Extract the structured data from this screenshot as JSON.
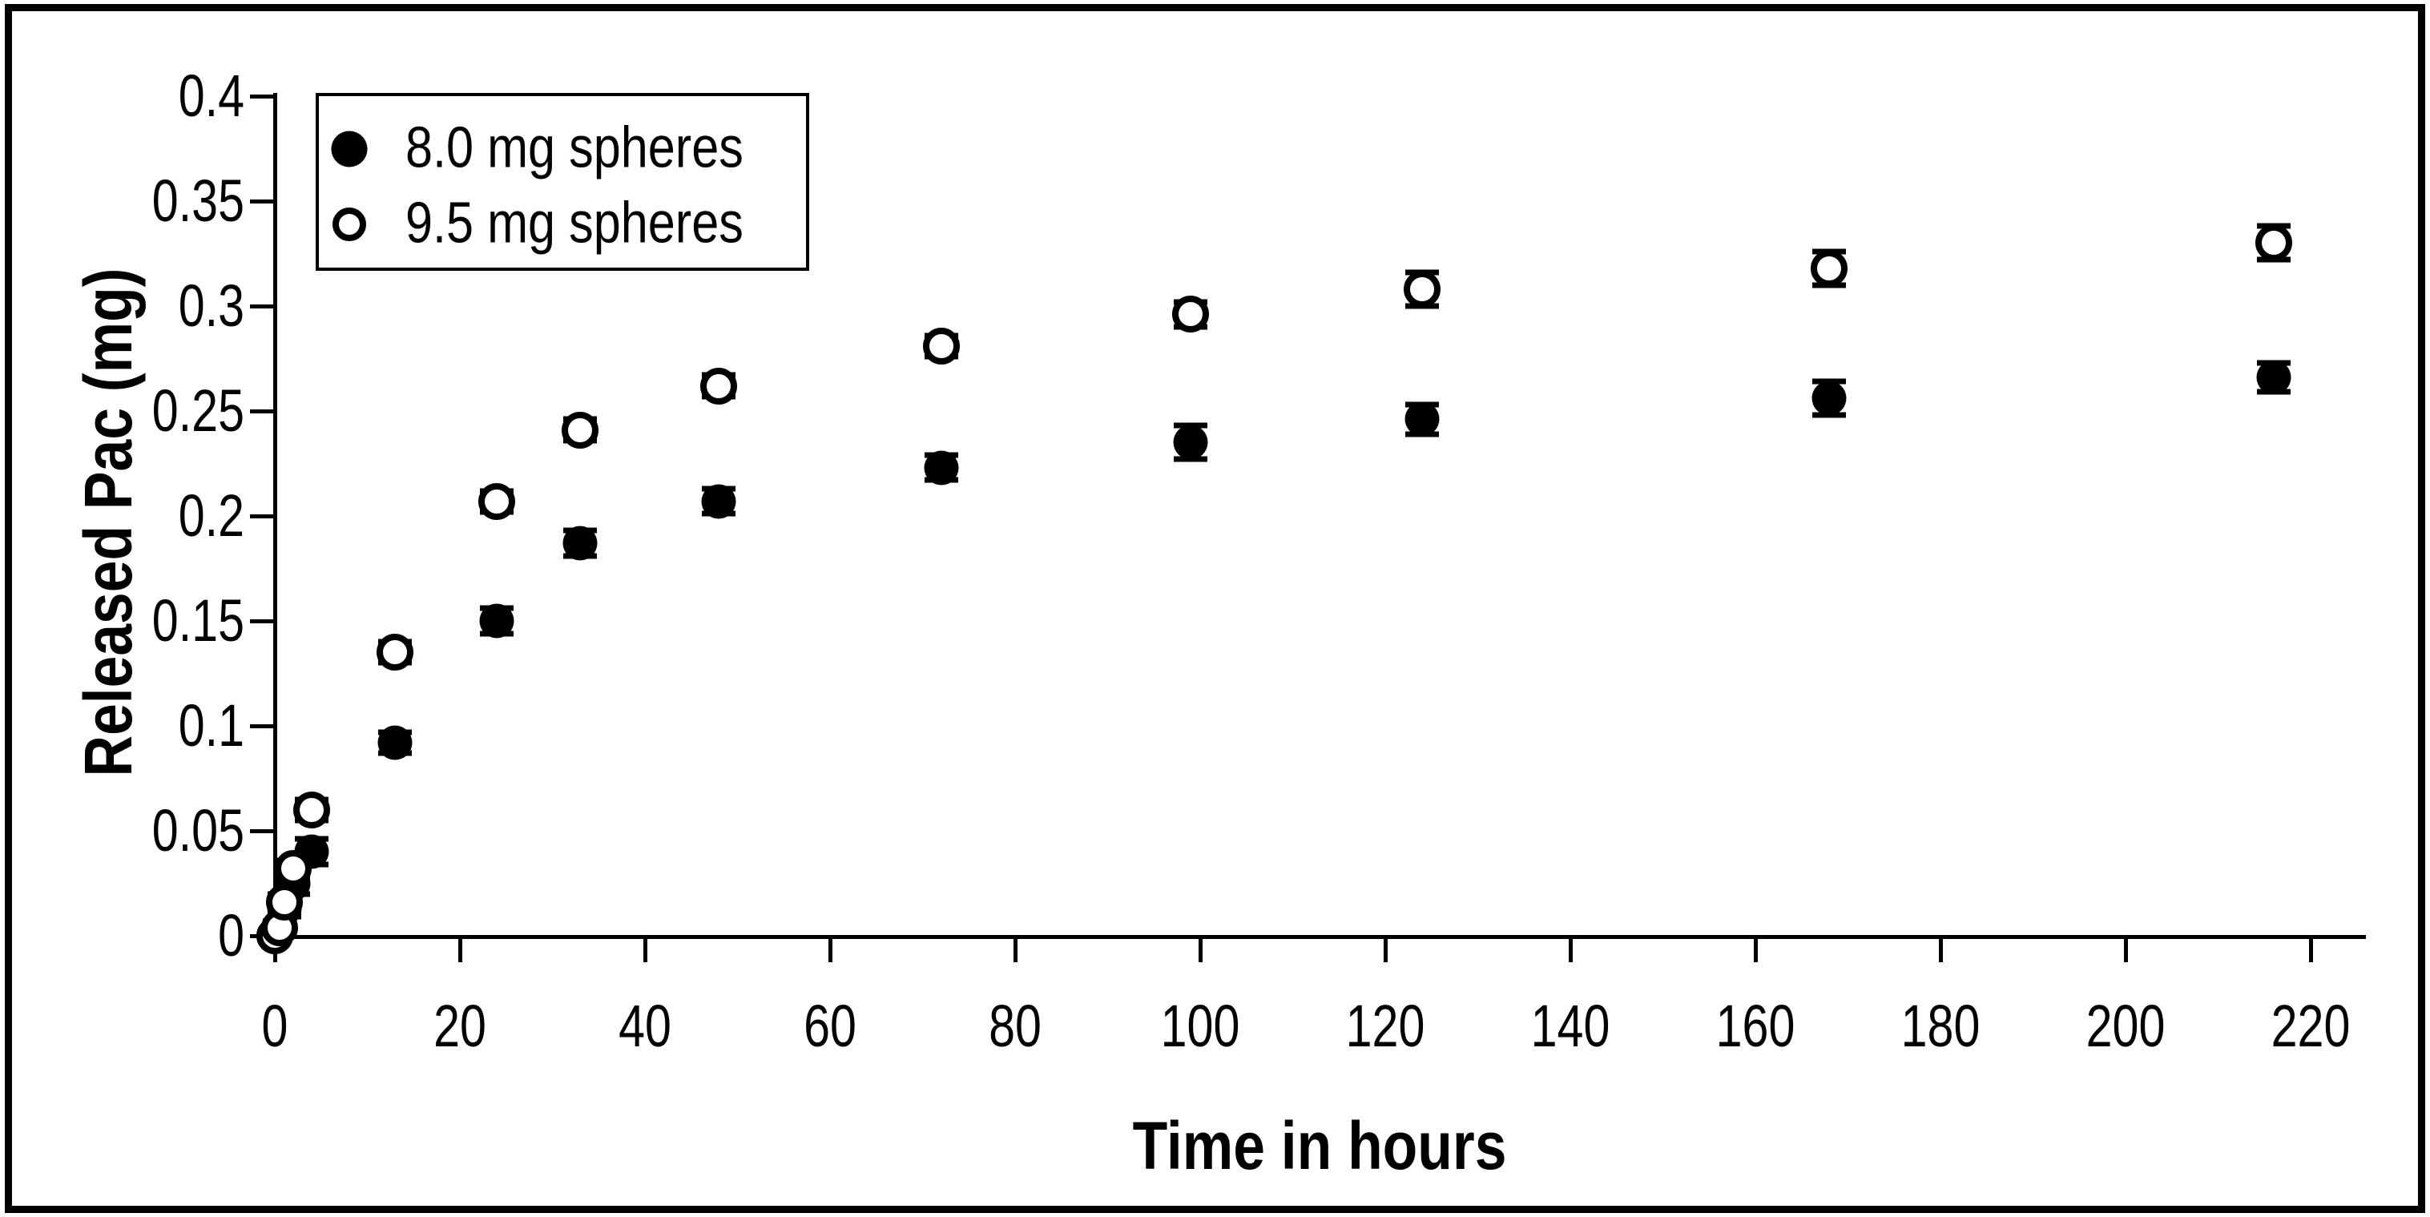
{
  "figure": {
    "background": "#ffffff",
    "ink_color": "#000000",
    "border_color": "#000000"
  },
  "chart_data": {
    "type": "scatter",
    "title": "",
    "xlabel": "Time in hours",
    "ylabel": "Released Pac (mg)",
    "xlim": [
      0,
      220
    ],
    "ylim": [
      0,
      0.4
    ],
    "grid": "off",
    "error_bars": true,
    "legend_position": "top-left-inside",
    "x_ticks": [
      0,
      20,
      40,
      60,
      80,
      100,
      120,
      140,
      160,
      180,
      200,
      220
    ],
    "y_ticks": [
      {
        "value": 0,
        "label": "0"
      },
      {
        "value": 0.05,
        "label": "0.05"
      },
      {
        "value": 0.1,
        "label": "0.1"
      },
      {
        "value": 0.15,
        "label": "0.15"
      },
      {
        "value": 0.2,
        "label": "0.2"
      },
      {
        "value": 0.25,
        "label": "0.25"
      },
      {
        "value": 0.3,
        "label": "0.3"
      },
      {
        "value": 0.35,
        "label": "0.35"
      },
      {
        "value": 0.4,
        "label": "0.4"
      }
    ],
    "series": [
      {
        "name": "8.0 mg spheres",
        "marker": "filled-circle",
        "color": "#000000",
        "points": [
          {
            "t": 0.5,
            "y": 0.003,
            "err": 0.002
          },
          {
            "t": 1,
            "y": 0.013,
            "err": 0.004
          },
          {
            "t": 2,
            "y": 0.025,
            "err": 0.005
          },
          {
            "t": 4,
            "y": 0.04,
            "err": 0.006
          },
          {
            "t": 13,
            "y": 0.092,
            "err": 0.005
          },
          {
            "t": 24,
            "y": 0.15,
            "err": 0.006
          },
          {
            "t": 33,
            "y": 0.187,
            "err": 0.006
          },
          {
            "t": 48,
            "y": 0.207,
            "err": 0.006
          },
          {
            "t": 72,
            "y": 0.223,
            "err": 0.006
          },
          {
            "t": 99,
            "y": 0.235,
            "err": 0.008
          },
          {
            "t": 124,
            "y": 0.246,
            "err": 0.007
          },
          {
            "t": 168,
            "y": 0.256,
            "err": 0.008
          },
          {
            "t": 216,
            "y": 0.266,
            "err": 0.007
          }
        ]
      },
      {
        "name": "9.5 mg spheres",
        "marker": "open-circle",
        "color": "#000000",
        "points": [
          {
            "t": 0,
            "y": 0.0,
            "err": 0.002
          },
          {
            "t": 0.5,
            "y": 0.004,
            "err": 0.003
          },
          {
            "t": 1,
            "y": 0.016,
            "err": 0.004
          },
          {
            "t": 2,
            "y": 0.032,
            "err": 0.004
          },
          {
            "t": 4,
            "y": 0.06,
            "err": 0.005
          },
          {
            "t": 13,
            "y": 0.135,
            "err": 0.005
          },
          {
            "t": 24,
            "y": 0.207,
            "err": 0.005
          },
          {
            "t": 33,
            "y": 0.241,
            "err": 0.005
          },
          {
            "t": 48,
            "y": 0.262,
            "err": 0.005
          },
          {
            "t": 72,
            "y": 0.281,
            "err": 0.005
          },
          {
            "t": 99,
            "y": 0.296,
            "err": 0.006
          },
          {
            "t": 124,
            "y": 0.308,
            "err": 0.008
          },
          {
            "t": 168,
            "y": 0.318,
            "err": 0.008
          },
          {
            "t": 216,
            "y": 0.33,
            "err": 0.008
          }
        ]
      }
    ]
  }
}
